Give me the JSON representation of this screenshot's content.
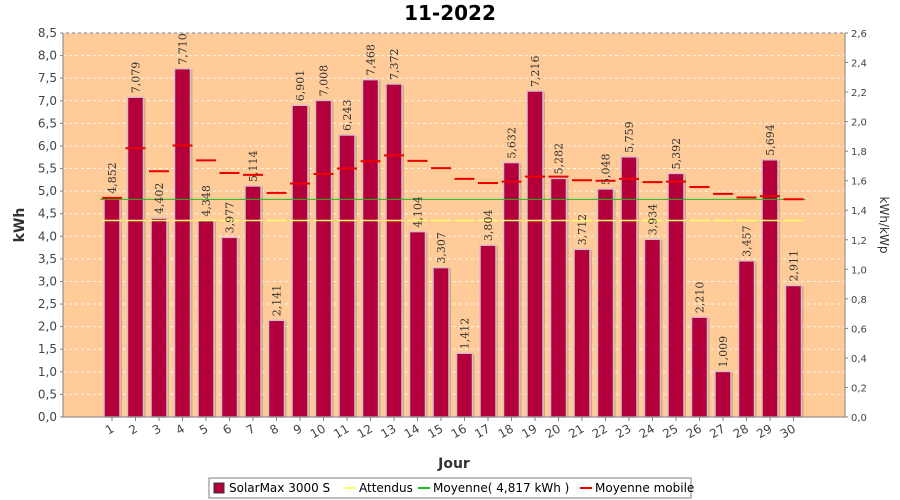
{
  "chart_data": {
    "type": "bar",
    "title": "11-2022",
    "xlabel": "Jour",
    "ylabel": "kWh",
    "y2label": "kWh/kWp",
    "ylim": [
      0,
      8.5
    ],
    "y2lim": [
      0,
      2.6
    ],
    "y_ticks": [
      "0,0",
      "0,5",
      "1,0",
      "1,5",
      "2,0",
      "2,5",
      "3,0",
      "3,5",
      "4,0",
      "4,5",
      "5,0",
      "5,5",
      "6,0",
      "6,5",
      "7,0",
      "7,5",
      "8,0",
      "8,5"
    ],
    "y2_ticks": [
      "0,0",
      "0,2",
      "0,4",
      "0,6",
      "0,8",
      "1,0",
      "1,2",
      "1,4",
      "1,6",
      "1,8",
      "2,0",
      "2,2",
      "2,4",
      "2,6"
    ],
    "categories": [
      "1",
      "2",
      "3",
      "4",
      "5",
      "6",
      "7",
      "8",
      "9",
      "10",
      "11",
      "12",
      "13",
      "14",
      "15",
      "16",
      "17",
      "18",
      "19",
      "20",
      "21",
      "22",
      "23",
      "24",
      "25",
      "26",
      "27",
      "28",
      "29",
      "30"
    ],
    "series": [
      {
        "name": "SolarMax 3000 S",
        "kind": "bar",
        "color": "#b3003c",
        "values": [
          4.852,
          7.079,
          4.402,
          7.71,
          4.348,
          3.977,
          5.114,
          2.141,
          6.901,
          7.008,
          6.243,
          7.468,
          7.372,
          4.104,
          3.307,
          1.412,
          3.804,
          5.632,
          7.216,
          5.282,
          3.712,
          5.048,
          5.759,
          3.934,
          5.392,
          2.21,
          1.009,
          3.457,
          5.694,
          2.911
        ],
        "labels": [
          "4,852",
          "7,079",
          "4,402",
          "7,710",
          "4,348",
          "3,977",
          "5,114",
          "2,141",
          "6,901",
          "7,008",
          "6,243",
          "7,468",
          "7,372",
          "4,104",
          "3,307",
          "1,412",
          "3,804",
          "5,632",
          "7,216",
          "5,282",
          "3,712",
          "5,048",
          "5,759",
          "3,934",
          "5,392",
          "2,210",
          "1,009",
          "3,457",
          "5,694",
          "2,911"
        ]
      },
      {
        "name": "Attendus",
        "kind": "line",
        "color": "#ffff66",
        "value": 4.35
      },
      {
        "name": "Moyenne( 4,817 kWh )",
        "kind": "line",
        "color": "#22bb22",
        "value": 4.817
      },
      {
        "name": "Moyenne mobile",
        "kind": "step",
        "color": "#ee0000",
        "values": [
          4.85,
          5.95,
          5.44,
          6.01,
          5.68,
          5.4,
          5.36,
          4.96,
          5.17,
          5.38,
          5.5,
          5.66,
          5.79,
          5.67,
          5.51,
          5.27,
          5.18,
          5.21,
          5.32,
          5.32,
          5.24,
          5.23,
          5.27,
          5.2,
          5.21,
          5.09,
          4.94,
          4.86,
          4.89,
          4.82
        ]
      }
    ],
    "legend": [
      {
        "name": "SolarMax 3000 S",
        "color": "#b3003c",
        "symbol": "box"
      },
      {
        "name": "Attendus",
        "color": "#ffff66",
        "symbol": "line"
      },
      {
        "name": "Moyenne( 4,817 kWh )",
        "color": "#22bb22",
        "symbol": "line"
      },
      {
        "name": "Moyenne mobile",
        "color": "#ee0000",
        "symbol": "line"
      }
    ],
    "legend_position": "bottom",
    "plot_background": "#ffcc99",
    "grid": true
  }
}
